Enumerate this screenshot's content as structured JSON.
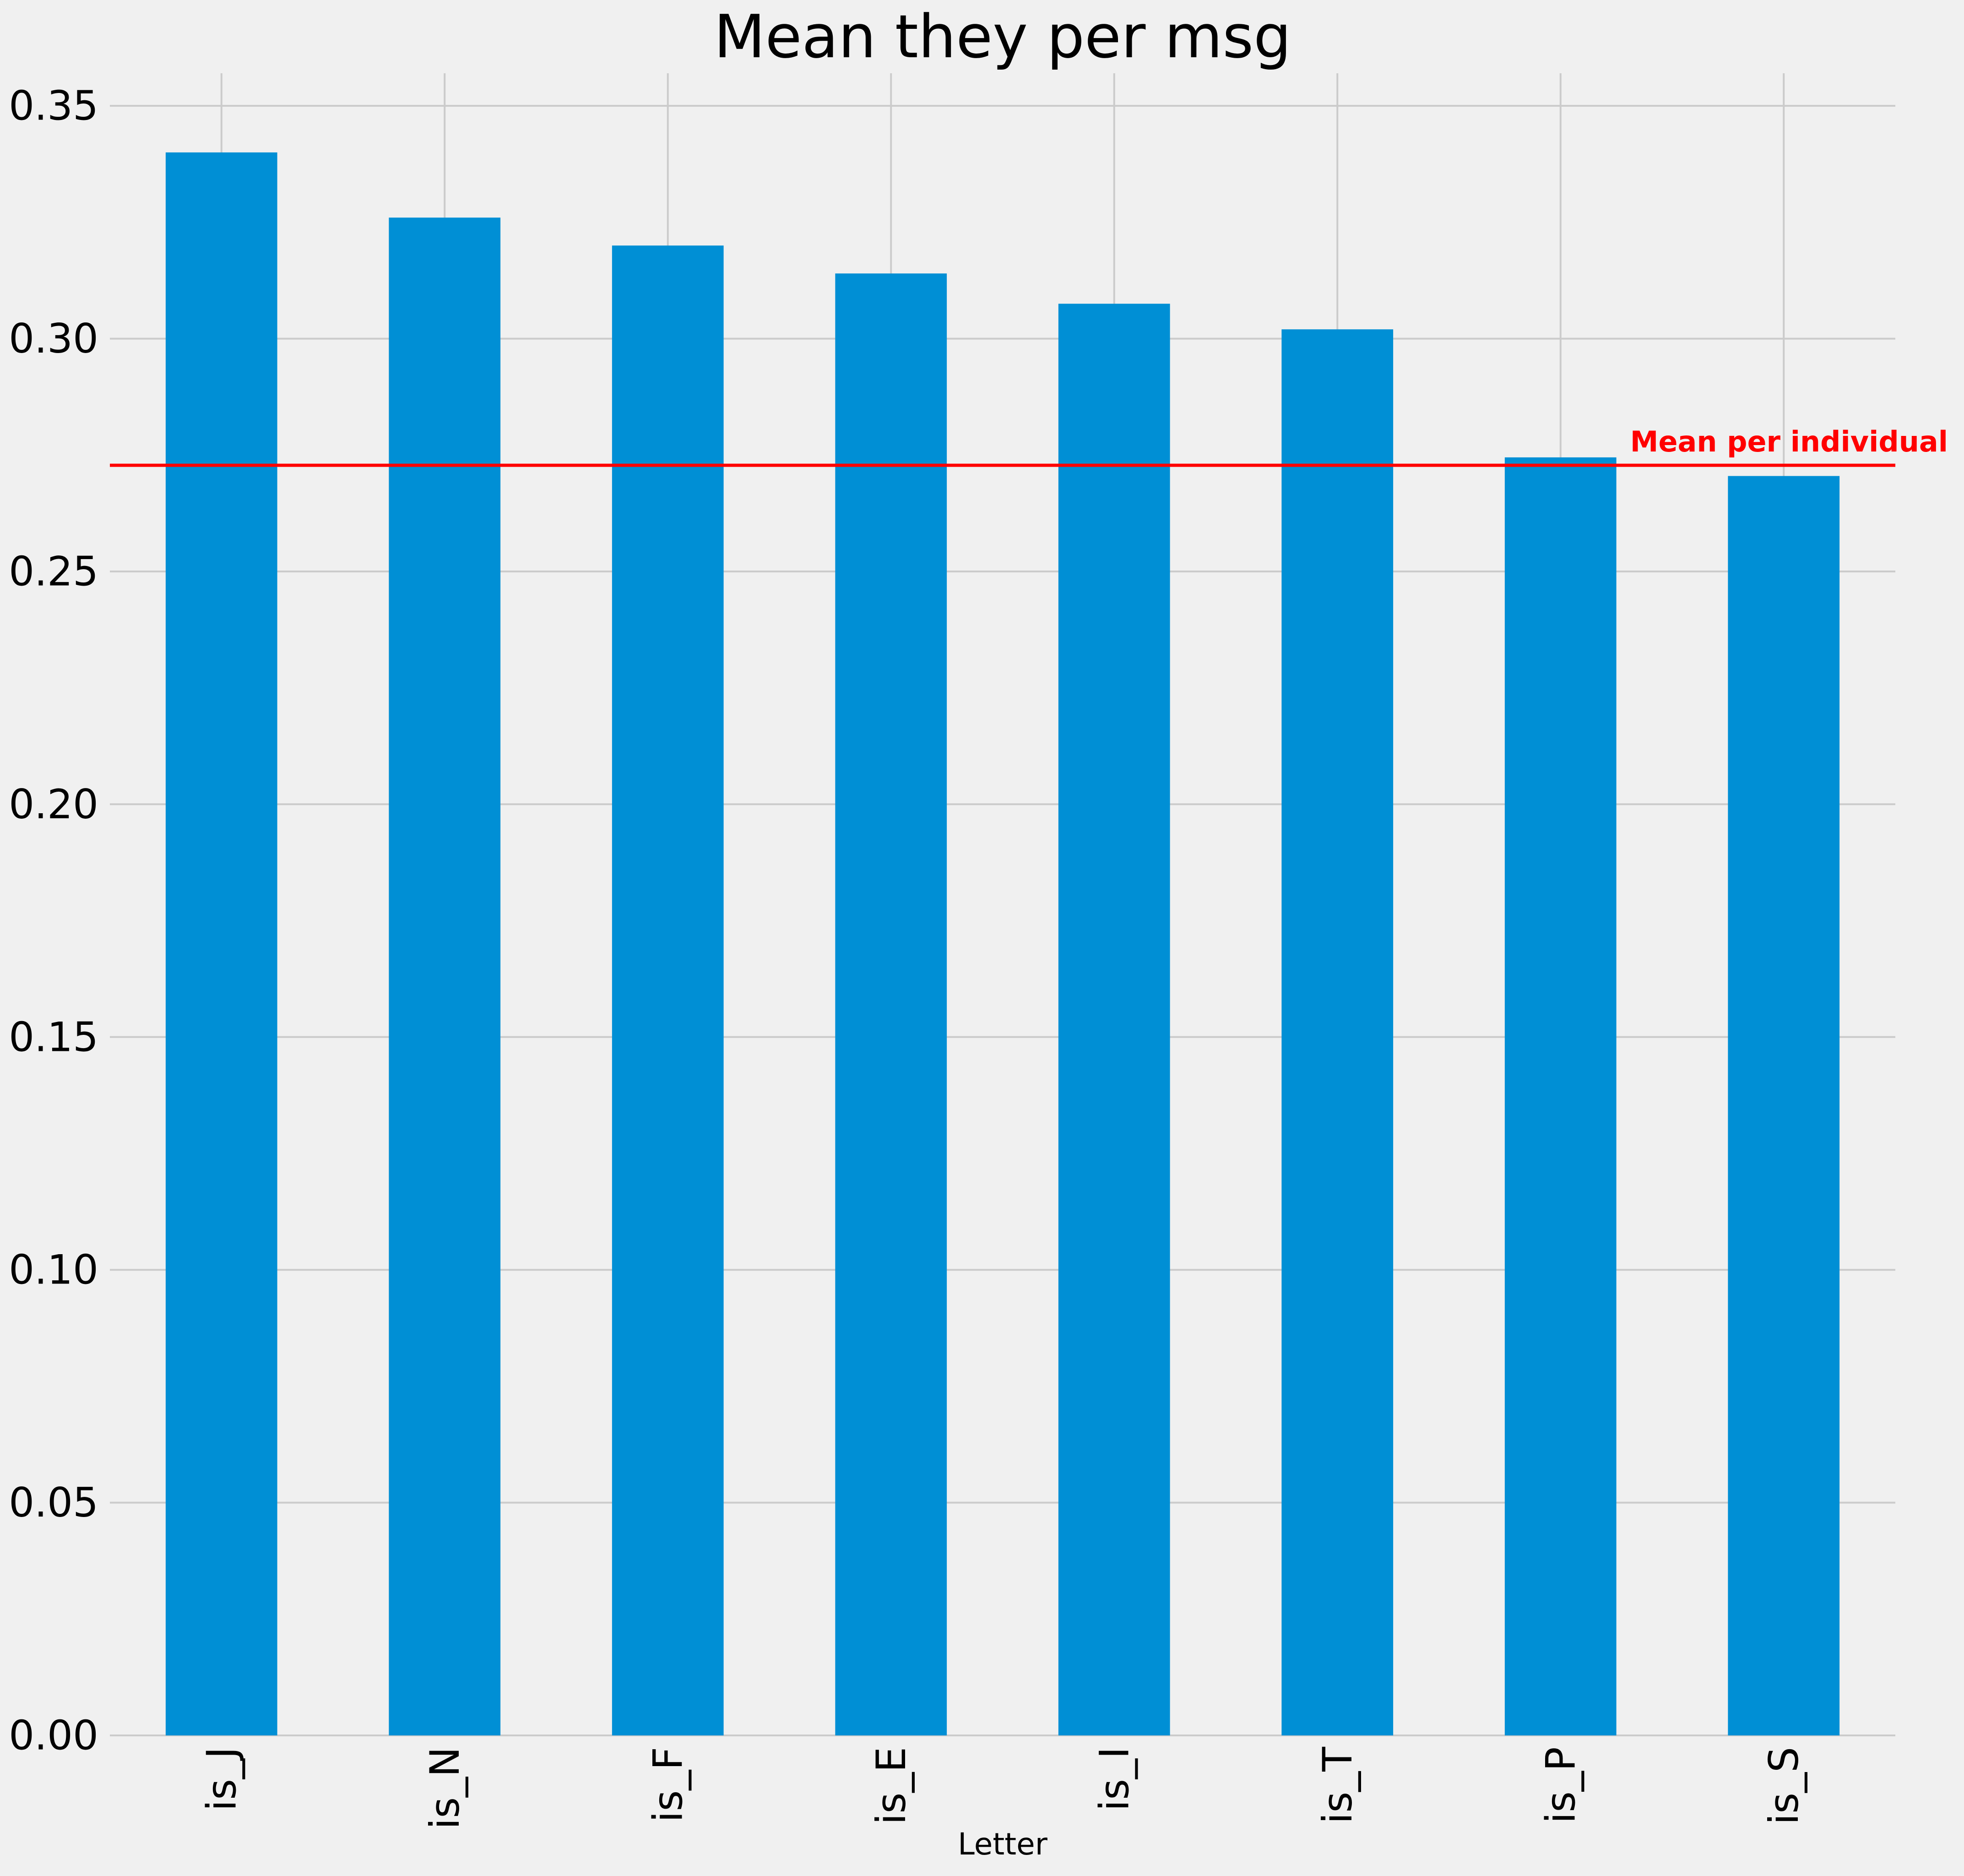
{
  "chart_data": {
    "type": "bar",
    "title": "Mean they per msg",
    "xlabel": "Letter",
    "ylabel": "",
    "categories": [
      "is_J",
      "is_N",
      "is_F",
      "is_E",
      "is_I",
      "is_T",
      "is_P",
      "is_S"
    ],
    "values": [
      0.34,
      0.326,
      0.32,
      0.314,
      0.3075,
      0.302,
      0.2745,
      0.2705
    ],
    "ylim": [
      0,
      0.357
    ],
    "yticks": [
      "0.00",
      "0.05",
      "0.10",
      "0.15",
      "0.20",
      "0.25",
      "0.30",
      "0.35"
    ],
    "ytick_values": [
      0,
      0.05,
      0.1,
      0.15,
      0.2,
      0.25,
      0.3,
      0.35
    ],
    "grid": true,
    "bar_color": "#008fd5",
    "reference_line": {
      "value": 0.2728,
      "label": "Mean per individual",
      "color": "#ff0000"
    },
    "background_color": "#f0f0f0",
    "grid_color": "#cbcbcb"
  }
}
